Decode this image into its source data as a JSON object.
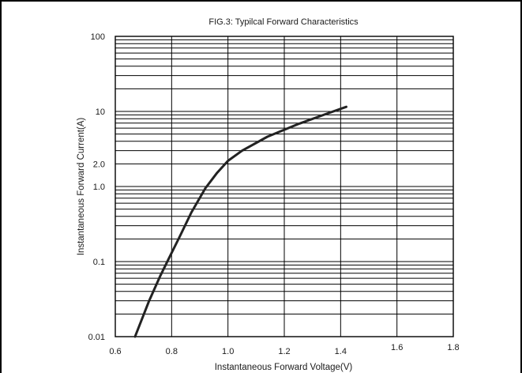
{
  "chart_data": {
    "type": "line",
    "title": "FIG.3: Typilcal Forward Characteristics",
    "xlabel": "Instantaneous Forward Voltage(V)",
    "ylabel": "Instantaneous Forward Current(A)",
    "xlim": [
      0.6,
      1.8
    ],
    "ylim": [
      0.01,
      100
    ],
    "yscale": "log",
    "xticks": [
      0.6,
      0.8,
      1.0,
      1.2,
      1.4,
      1.6,
      1.8
    ],
    "xtick_labels": [
      "0.6",
      "0.8",
      "1.0",
      "1.2",
      "1.4",
      "1.6",
      "1.8"
    ],
    "yticks": [
      0.01,
      0.1,
      1.0,
      2.0,
      10,
      100
    ],
    "ytick_labels": [
      "0.01",
      "0.1",
      "1.0",
      "2.0",
      "10",
      "100"
    ],
    "grid": true,
    "series": [
      {
        "x": [
          0.67,
          0.72,
          0.76,
          0.79,
          0.83,
          0.87,
          0.92,
          0.96,
          1.0,
          1.05,
          1.14,
          1.25,
          1.35,
          1.42
        ],
        "y": [
          0.01,
          0.03,
          0.065,
          0.11,
          0.22,
          0.45,
          0.95,
          1.5,
          2.2,
          3.0,
          4.6,
          6.8,
          9.3,
          11.5
        ]
      }
    ]
  }
}
